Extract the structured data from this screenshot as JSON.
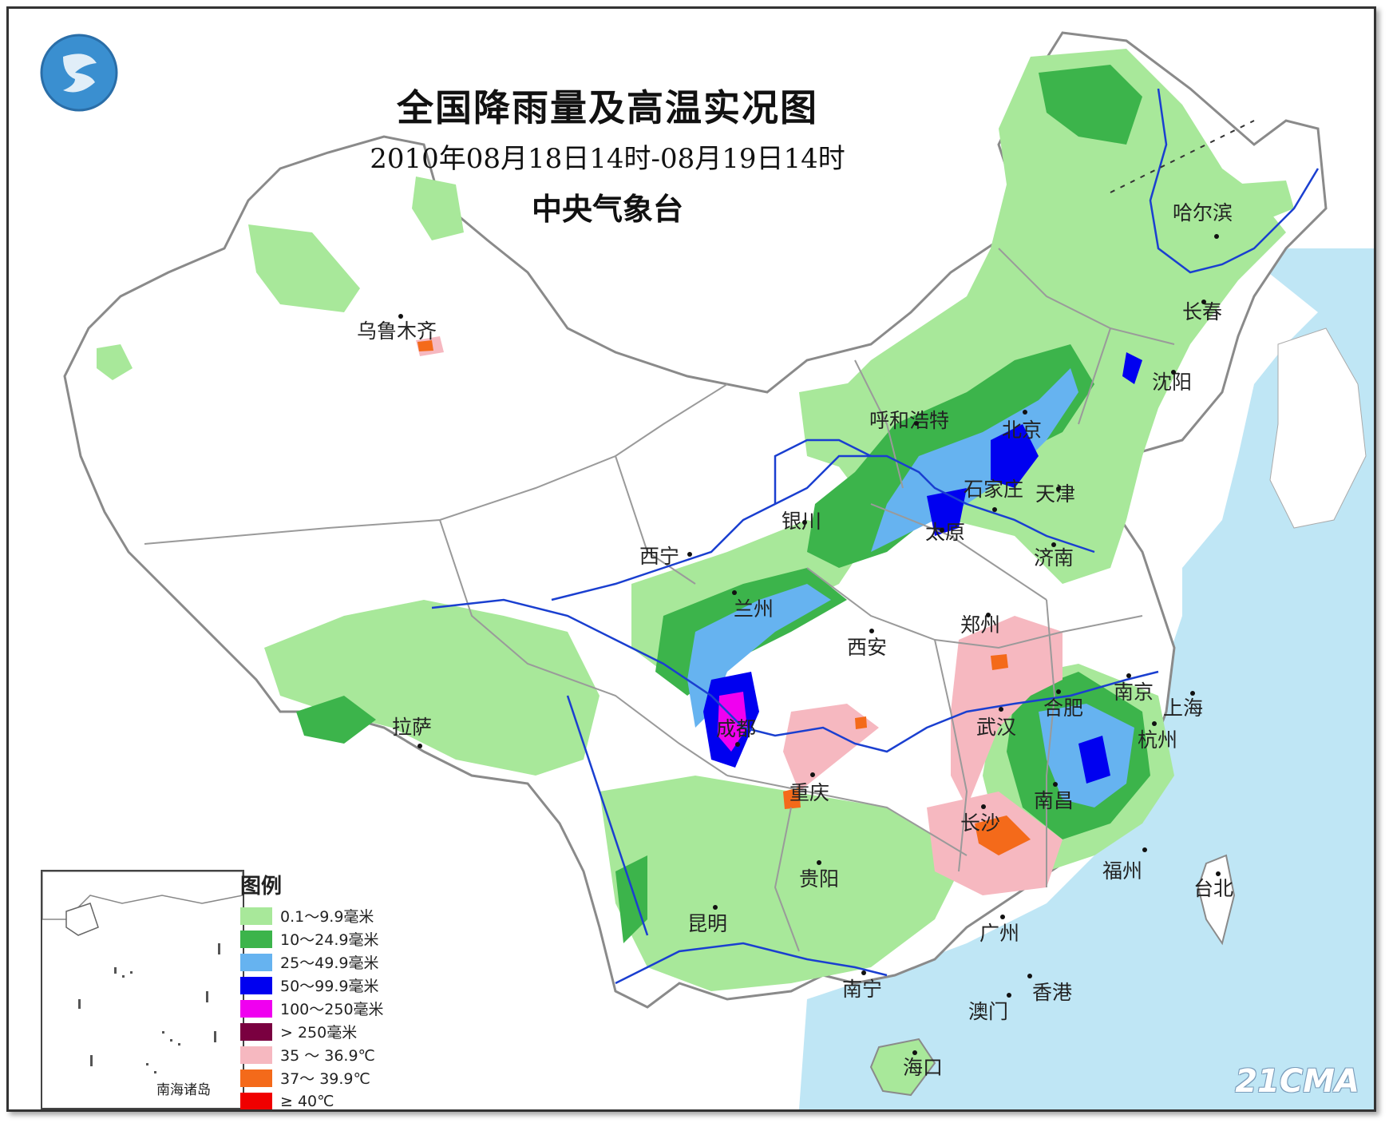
{
  "title": "全国降雨量及高温实况图",
  "period": "2010年08月18日14时-08月19日14时",
  "issuer": "中央气象台",
  "cities": [
    {
      "name": "哈尔滨"
    },
    {
      "name": "长春"
    },
    {
      "name": "沈阳"
    },
    {
      "name": "乌鲁木齐"
    },
    {
      "name": "呼和浩特"
    },
    {
      "name": "北京"
    },
    {
      "name": "石家庄"
    },
    {
      "name": "天津"
    },
    {
      "name": "银川"
    },
    {
      "name": "太原"
    },
    {
      "name": "济南"
    },
    {
      "name": "西宁"
    },
    {
      "name": "兰州"
    },
    {
      "name": "郑州"
    },
    {
      "name": "西安"
    },
    {
      "name": "南京"
    },
    {
      "name": "合肥"
    },
    {
      "name": "上海"
    },
    {
      "name": "拉萨"
    },
    {
      "name": "成都"
    },
    {
      "name": "武汉"
    },
    {
      "name": "杭州"
    },
    {
      "name": "重庆"
    },
    {
      "name": "南昌"
    },
    {
      "name": "长沙"
    },
    {
      "name": "福州"
    },
    {
      "name": "贵阳"
    },
    {
      "name": "台北"
    },
    {
      "name": "昆明"
    },
    {
      "name": "广州"
    },
    {
      "name": "南宁"
    },
    {
      "name": "香港"
    },
    {
      "name": "澳门"
    },
    {
      "name": "海口"
    }
  ],
  "legend": {
    "title": "图例",
    "items": [
      {
        "label": "0.1～9.9毫米",
        "color": "#a8e89a"
      },
      {
        "label": "10～24.9毫米",
        "color": "#3cb44b"
      },
      {
        "label": "25～49.9毫米",
        "color": "#66b3f0"
      },
      {
        "label": "50～99.9毫米",
        "color": "#0000f0"
      },
      {
        "label": "100～250毫米",
        "color": "#f000f0"
      },
      {
        "label": "> 250毫米",
        "color": "#7a0040"
      },
      {
        "label": "35 ～ 36.9℃",
        "color": "#f6b8c0"
      },
      {
        "label": "37～ 39.9℃",
        "color": "#f46a1a"
      },
      {
        "label": "≥ 40℃",
        "color": "#f00000"
      }
    ]
  },
  "inset_label": "南海诸岛",
  "watermark": "21CMA",
  "colors": {
    "sea": "#bfe6f5",
    "land": "#ffffff",
    "border": "#9a9a9a",
    "river": "#1a3fd0"
  }
}
